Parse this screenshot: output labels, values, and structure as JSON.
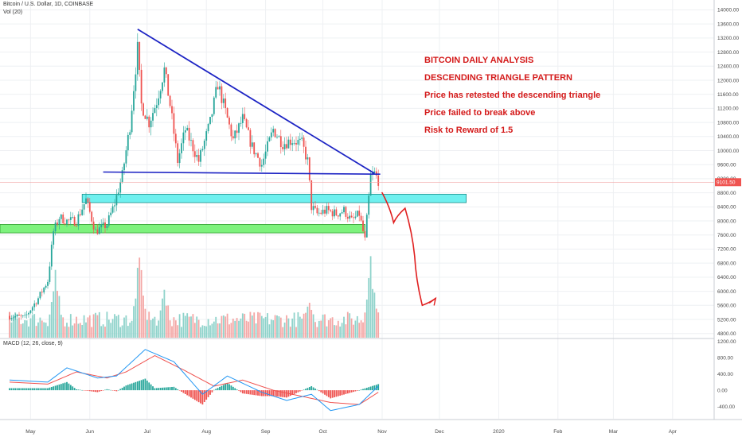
{
  "header": {
    "title": "Bitcoin / U.S. Dollar, 1D, COINBASE",
    "volume_label": "Vol (20)",
    "macd_label": "MACD (12, 26, close, 9)"
  },
  "annotations": [
    "BITCOIN DAILY ANALYSIS",
    "DESCENDING TRIANGLE PATTERN",
    "Price has retested the descending triangle",
    "Price failed to break above",
    "Risk to Reward of 1.5"
  ],
  "colors": {
    "up": "#26a69a",
    "down": "#ef5350",
    "up_volume": "#8fd3cb",
    "down_volume": "#f4a7a6",
    "trendline": "#1d24c4",
    "resistance_zone": "#6ff0ef",
    "support_zone": "#7df27d",
    "projection": "#e02020",
    "annotation_text": "#d41a1a",
    "macd_line": "#2196f3",
    "signal_line": "#ef5350",
    "grid": "#eef0f3"
  },
  "chart_data": {
    "type": "candlestick",
    "title": "Bitcoin / U.S. Dollar, 1D, COINBASE",
    "x_ticks": [
      "May",
      "Jun",
      "Jul",
      "Aug",
      "Sep",
      "Oct",
      "Nov",
      "Dec",
      "2020",
      "Feb",
      "Mar",
      "Apr"
    ],
    "y_ticks": [
      4800,
      5200,
      5600,
      6000,
      6400,
      6800,
      7200,
      7600,
      8000,
      8400,
      8800,
      9200,
      9600,
      10000,
      10400,
      10800,
      11200,
      11600,
      12000,
      12400,
      12800,
      13200,
      13600,
      14000
    ],
    "y_tick_labels": [
      "4800.00",
      "5200.00",
      "5600.00",
      "6000.00",
      "6400.00",
      "6800.00",
      "7200.00",
      "7600.00",
      "8000.00",
      "8400.00",
      "8800.00",
      "9200.00",
      "9600.00",
      "10000.00",
      "10400.00",
      "10800.00",
      "11200.00",
      "11600.00",
      "12000.00",
      "12400.00",
      "12800.00",
      "13200.00",
      "13600.00",
      "14000.00"
    ],
    "ylim": [
      4680,
      14100
    ],
    "last_price": 9101.5,
    "last_price_label": "9101.50",
    "close_path": [
      {
        "date": "2019-04-20",
        "close": 5300
      },
      {
        "date": "2019-04-28",
        "close": 5250
      },
      {
        "date": "2019-05-05",
        "close": 5800
      },
      {
        "date": "2019-05-10",
        "close": 6300
      },
      {
        "date": "2019-05-13",
        "close": 7700
      },
      {
        "date": "2019-05-16",
        "close": 8100
      },
      {
        "date": "2019-05-20",
        "close": 8000
      },
      {
        "date": "2019-05-25",
        "close": 8000
      },
      {
        "date": "2019-05-30",
        "close": 8600
      },
      {
        "date": "2019-06-04",
        "close": 7700
      },
      {
        "date": "2019-06-10",
        "close": 7900
      },
      {
        "date": "2019-06-14",
        "close": 8500
      },
      {
        "date": "2019-06-18",
        "close": 9300
      },
      {
        "date": "2019-06-22",
        "close": 10700
      },
      {
        "date": "2019-06-26",
        "close": 12900
      },
      {
        "date": "2019-06-28",
        "close": 11300
      },
      {
        "date": "2019-07-02",
        "close": 10800
      },
      {
        "date": "2019-07-06",
        "close": 11400
      },
      {
        "date": "2019-07-10",
        "close": 12300
      },
      {
        "date": "2019-07-13",
        "close": 11300
      },
      {
        "date": "2019-07-17",
        "close": 9700
      },
      {
        "date": "2019-07-21",
        "close": 10600
      },
      {
        "date": "2019-07-28",
        "close": 9700
      },
      {
        "date": "2019-08-03",
        "close": 10800
      },
      {
        "date": "2019-08-07",
        "close": 11900
      },
      {
        "date": "2019-08-10",
        "close": 11300
      },
      {
        "date": "2019-08-15",
        "close": 10300
      },
      {
        "date": "2019-08-20",
        "close": 10900
      },
      {
        "date": "2019-08-25",
        "close": 10100
      },
      {
        "date": "2019-08-30",
        "close": 9600
      },
      {
        "date": "2019-09-05",
        "close": 10600
      },
      {
        "date": "2019-09-10",
        "close": 10200
      },
      {
        "date": "2019-09-15",
        "close": 10300
      },
      {
        "date": "2019-09-20",
        "close": 10200
      },
      {
        "date": "2019-09-23",
        "close": 9700
      },
      {
        "date": "2019-09-25",
        "close": 8400
      },
      {
        "date": "2019-09-28",
        "close": 8200
      },
      {
        "date": "2019-10-03",
        "close": 8300
      },
      {
        "date": "2019-10-08",
        "close": 8200
      },
      {
        "date": "2019-10-12",
        "close": 8300
      },
      {
        "date": "2019-10-16",
        "close": 8000
      },
      {
        "date": "2019-10-20",
        "close": 8200
      },
      {
        "date": "2019-10-23",
        "close": 7450
      },
      {
        "date": "2019-10-25",
        "close": 8650
      },
      {
        "date": "2019-10-26",
        "close": 9250
      },
      {
        "date": "2019-10-28",
        "close": 9350
      },
      {
        "date": "2019-10-30",
        "close": 9150
      }
    ],
    "volume_peaks": [
      {
        "date": "2019-05-14",
        "relative": 0.8
      },
      {
        "date": "2019-06-27",
        "relative": 1.0
      },
      {
        "date": "2019-07-10",
        "relative": 0.65
      },
      {
        "date": "2019-09-24",
        "relative": 0.55
      },
      {
        "date": "2019-10-26",
        "relative": 0.95
      }
    ],
    "drawings": {
      "descending_trendline": [
        {
          "date": "2019-06-26",
          "price": 13450
        },
        {
          "date": "2019-10-28",
          "price": 9350
        }
      ],
      "support_trendline": [
        {
          "date": "2019-06-08",
          "price": 9390
        },
        {
          "date": "2019-10-31",
          "price": 9330
        }
      ],
      "resistance_zone": {
        "from": "2019-05-28",
        "to": "2019-12-15",
        "low": 8520,
        "high": 8760
      },
      "support_zone": {
        "from": "2019-03-25",
        "to": "2019-10-23",
        "low": 7660,
        "high": 7900
      },
      "projected_path": [
        {
          "date": "2019-11-01",
          "price": 8800
        },
        {
          "date": "2019-11-07",
          "price": 7950
        },
        {
          "date": "2019-11-13",
          "price": 8360
        },
        {
          "date": "2019-11-18",
          "price": 7000
        },
        {
          "date": "2019-11-22",
          "price": 5600
        },
        {
          "date": "2019-11-29",
          "price": 5800
        }
      ]
    },
    "macd": {
      "label": "MACD (12, 26, close, 9)",
      "y_ticks": [
        1200,
        800,
        400,
        0,
        -400
      ],
      "y_tick_labels": [
        "1200.00",
        "800.00",
        "400.00",
        "0.00",
        "-400.00"
      ],
      "ylim": [
        -700,
        1250
      ],
      "macd_line": [
        {
          "date": "2019-04-20",
          "value": 250
        },
        {
          "date": "2019-05-10",
          "value": 200
        },
        {
          "date": "2019-05-20",
          "value": 550
        },
        {
          "date": "2019-06-05",
          "value": 300
        },
        {
          "date": "2019-06-15",
          "value": 350
        },
        {
          "date": "2019-06-30",
          "value": 1000
        },
        {
          "date": "2019-07-15",
          "value": 700
        },
        {
          "date": "2019-07-30",
          "value": -100
        },
        {
          "date": "2019-08-12",
          "value": 350
        },
        {
          "date": "2019-08-30",
          "value": -50
        },
        {
          "date": "2019-09-12",
          "value": -250
        },
        {
          "date": "2019-09-25",
          "value": -100
        },
        {
          "date": "2019-10-05",
          "value": -500
        },
        {
          "date": "2019-10-20",
          "value": -350
        },
        {
          "date": "2019-10-30",
          "value": 100
        }
      ],
      "signal_line": [
        {
          "date": "2019-04-20",
          "value": 200
        },
        {
          "date": "2019-05-10",
          "value": 150
        },
        {
          "date": "2019-05-25",
          "value": 450
        },
        {
          "date": "2019-06-10",
          "value": 300
        },
        {
          "date": "2019-06-20",
          "value": 450
        },
        {
          "date": "2019-07-05",
          "value": 850
        },
        {
          "date": "2019-07-20",
          "value": 500
        },
        {
          "date": "2019-08-05",
          "value": 100
        },
        {
          "date": "2019-08-20",
          "value": 250
        },
        {
          "date": "2019-09-05",
          "value": 0
        },
        {
          "date": "2019-09-20",
          "value": -150
        },
        {
          "date": "2019-10-05",
          "value": -300
        },
        {
          "date": "2019-10-20",
          "value": -350
        },
        {
          "date": "2019-10-30",
          "value": -50
        }
      ]
    }
  }
}
